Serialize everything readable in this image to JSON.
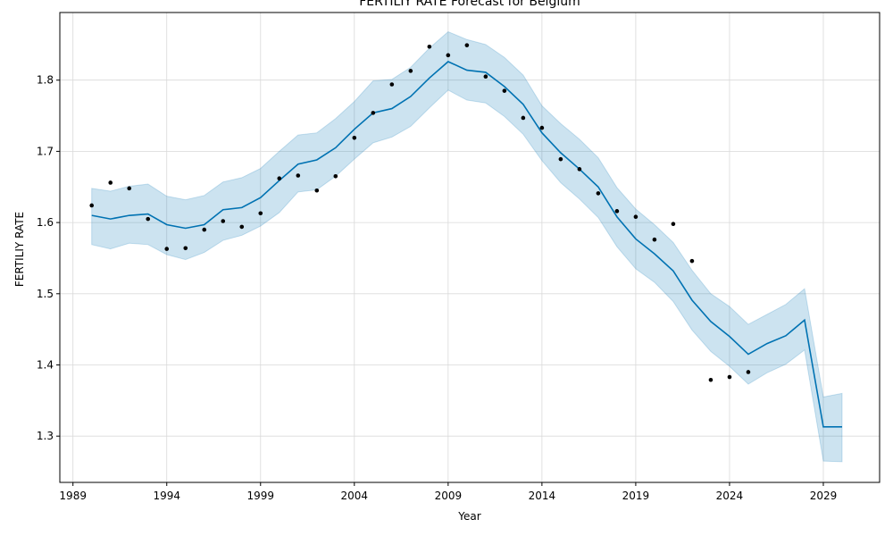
{
  "chart_data": {
    "type": "line",
    "title": "FERTILIY RATE Forecast for Belgium",
    "xlabel": "Year",
    "ylabel": "FERTILIY RATE",
    "xlim": [
      1988.3,
      2032.0
    ],
    "ylim": [
      1.235,
      1.895
    ],
    "x_ticks": [
      1989,
      1994,
      1999,
      2004,
      2009,
      2014,
      2019,
      2024,
      2029
    ],
    "x_tick_labels": [
      "1989",
      "1994",
      "1999",
      "2004",
      "2009",
      "2014",
      "2019",
      "2024",
      "2029"
    ],
    "y_ticks": [
      1.3,
      1.4,
      1.5,
      1.6,
      1.7,
      1.8
    ],
    "y_tick_labels": [
      "1.3",
      "1.4",
      "1.5",
      "1.6",
      "1.7",
      "1.8"
    ],
    "grid": true,
    "colors": {
      "forecast_line": "#0072b2",
      "uncertainty_band": "#0072b2",
      "observed_points": "#000000",
      "grid": "#d9d9d9"
    },
    "series": [
      {
        "kind": "observed-points",
        "x": [
          1990,
          1991,
          1992,
          1993,
          1994,
          1995,
          1996,
          1997,
          1998,
          1999,
          2000,
          2001,
          2002,
          2003,
          2004,
          2005,
          2006,
          2007,
          2008,
          2009,
          2010,
          2011,
          2012,
          2013,
          2014,
          2015,
          2016,
          2017,
          2018,
          2019,
          2020,
          2021,
          2022,
          2023,
          2024,
          2025
        ],
        "y": [
          1.624,
          1.656,
          1.648,
          1.605,
          1.563,
          1.564,
          1.59,
          1.602,
          1.594,
          1.613,
          1.662,
          1.666,
          1.645,
          1.665,
          1.719,
          1.754,
          1.794,
          1.813,
          1.847,
          1.835,
          1.849,
          1.805,
          1.785,
          1.747,
          1.733,
          1.689,
          1.675,
          1.641,
          1.616,
          1.608,
          1.576,
          1.598,
          1.546,
          1.379,
          1.383,
          1.39
        ]
      },
      {
        "kind": "forecast",
        "x": [
          1990,
          1991,
          1992,
          1993,
          1994,
          1995,
          1996,
          1997,
          1998,
          1999,
          2000,
          2001,
          2002,
          2003,
          2004,
          2005,
          2006,
          2007,
          2008,
          2009,
          2010,
          2011,
          2012,
          2013,
          2014,
          2015,
          2016,
          2017,
          2018,
          2019,
          2020,
          2021,
          2022,
          2023,
          2024,
          2025,
          2026,
          2027,
          2028,
          2029,
          2030
        ],
        "y": [
          1.61,
          1.605,
          1.61,
          1.612,
          1.597,
          1.592,
          1.597,
          1.618,
          1.621,
          1.635,
          1.659,
          1.682,
          1.688,
          1.705,
          1.731,
          1.754,
          1.76,
          1.777,
          1.803,
          1.826,
          1.814,
          1.811,
          1.791,
          1.766,
          1.726,
          1.698,
          1.675,
          1.65,
          1.608,
          1.577,
          1.556,
          1.532,
          1.491,
          1.461,
          1.44,
          1.415,
          1.43,
          1.441,
          1.463,
          1.313,
          1.313
        ],
        "lower": [
          1.569,
          1.563,
          1.571,
          1.569,
          1.555,
          1.548,
          1.558,
          1.575,
          1.582,
          1.595,
          1.614,
          1.643,
          1.646,
          1.665,
          1.689,
          1.712,
          1.72,
          1.735,
          1.761,
          1.786,
          1.772,
          1.768,
          1.749,
          1.724,
          1.687,
          1.656,
          1.633,
          1.607,
          1.566,
          1.535,
          1.516,
          1.489,
          1.449,
          1.419,
          1.398,
          1.373,
          1.389,
          1.401,
          1.421,
          1.265,
          1.264
        ],
        "upper": [
          1.648,
          1.644,
          1.651,
          1.654,
          1.637,
          1.632,
          1.638,
          1.657,
          1.663,
          1.676,
          1.7,
          1.723,
          1.726,
          1.746,
          1.77,
          1.799,
          1.801,
          1.818,
          1.845,
          1.868,
          1.857,
          1.85,
          1.832,
          1.807,
          1.764,
          1.739,
          1.717,
          1.691,
          1.649,
          1.619,
          1.597,
          1.572,
          1.533,
          1.5,
          1.482,
          1.457,
          1.471,
          1.485,
          1.507,
          1.355,
          1.36
        ]
      }
    ]
  }
}
